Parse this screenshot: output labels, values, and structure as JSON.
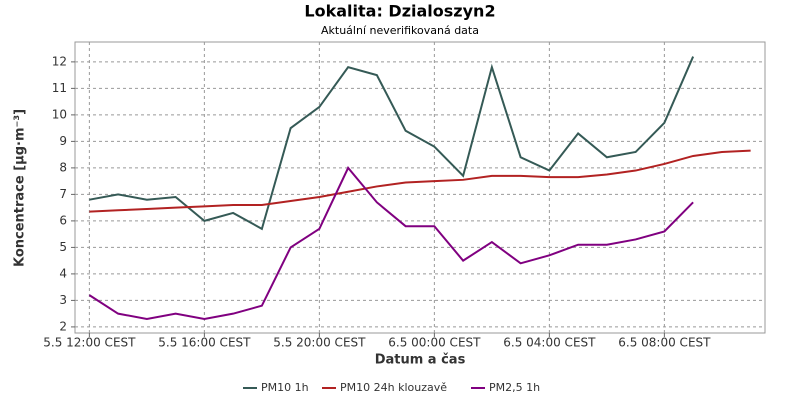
{
  "chart_data": {
    "type": "line",
    "title": "Lokalita: Dzialoszyn2",
    "subtitle": "Aktuální neverifikovaná data",
    "x_label": "Datum a čas",
    "y_label": "Koncentrace [µg·m⁻³]",
    "categories": [
      "5.5 12:00 CEST",
      null,
      null,
      null,
      "5.5 16:00 CEST",
      null,
      null,
      null,
      "5.5 20:00 CEST",
      null,
      null,
      null,
      "6.5 00:00 CEST",
      null,
      null,
      null,
      "6.5 04:00 CEST",
      null,
      null,
      null,
      "6.5 08:00 CEST",
      null,
      null,
      null
    ],
    "series": [
      {
        "name": "PM10 1h",
        "color": "#355a56",
        "values": [
          6.8,
          7.0,
          6.8,
          6.9,
          6.0,
          6.3,
          5.7,
          9.5,
          10.3,
          11.8,
          11.5,
          9.4,
          8.8,
          7.7,
          11.8,
          8.4,
          7.9,
          9.3,
          8.4,
          8.6,
          9.7,
          12.2,
          null,
          null
        ]
      },
      {
        "name": "PM10 24h klouzavě",
        "color": "#b22222",
        "values": [
          6.35,
          6.4,
          6.45,
          6.5,
          6.55,
          6.6,
          6.6,
          6.75,
          6.9,
          7.1,
          7.3,
          7.45,
          7.5,
          7.55,
          7.7,
          7.7,
          7.65,
          7.65,
          7.75,
          7.9,
          8.15,
          8.45,
          8.6,
          8.65
        ]
      },
      {
        "name": "PM2,5 1h",
        "color": "#800080",
        "values": [
          3.2,
          2.5,
          2.3,
          2.5,
          2.3,
          2.5,
          2.8,
          5.0,
          5.7,
          8.0,
          6.7,
          5.8,
          5.8,
          4.5,
          5.2,
          4.4,
          4.7,
          5.1,
          5.1,
          5.3,
          5.6,
          6.7,
          null,
          null
        ]
      }
    ],
    "ylim": [
      1.77,
      12.75
    ],
    "yticks": [
      2,
      3,
      4,
      5,
      6,
      7,
      8,
      9,
      10,
      11,
      12
    ],
    "grid": true
  }
}
